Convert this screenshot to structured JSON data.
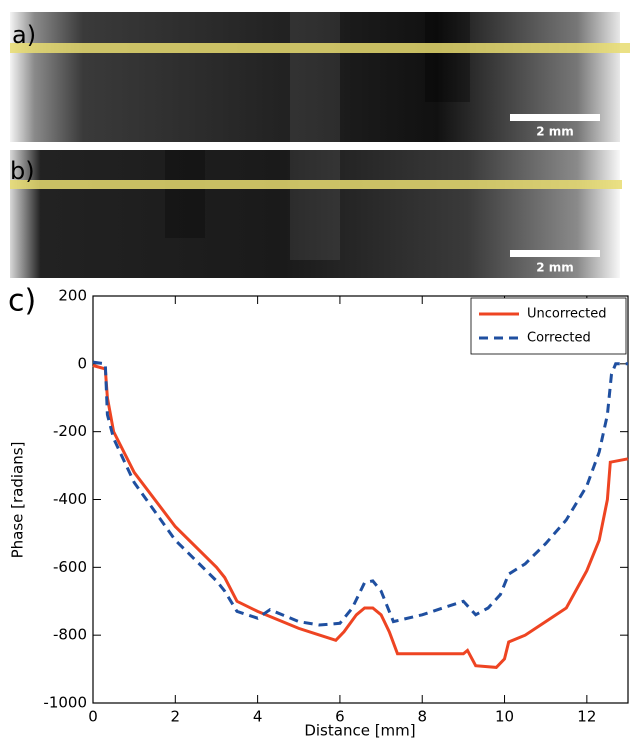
{
  "panels": [
    {
      "label": "a)",
      "scale_bar": "2 mm"
    },
    {
      "label": "b)",
      "scale_bar": "2 mm"
    }
  ],
  "chart_data": {
    "type": "line",
    "panel_label": "c)",
    "x_label": "Distance [mm]",
    "y_label": "Phase [radians]",
    "xlim": [
      0,
      13
    ],
    "ylim": [
      -1000,
      200
    ],
    "xticks": [
      0,
      2,
      4,
      6,
      8,
      10,
      12
    ],
    "yticks": [
      -1000,
      -800,
      -600,
      -400,
      -200,
      0,
      200
    ],
    "legend": "upper right",
    "series": [
      {
        "name": "Uncorrected",
        "color": "#ee4422",
        "style": "solid",
        "x": [
          0,
          0.3,
          0.35,
          0.5,
          1,
          2,
          3,
          3.2,
          3.5,
          4,
          5,
          5.9,
          6.1,
          6.4,
          6.6,
          6.8,
          7.0,
          7.2,
          7.4,
          8,
          9,
          9.1,
          9.3,
          9.8,
          10,
          10.1,
          10.5,
          11,
          11.5,
          12,
          12.3,
          12.5,
          12.57,
          13
        ],
        "values": [
          -5,
          -15,
          -100,
          -200,
          -320,
          -480,
          -600,
          -630,
          -700,
          -730,
          -780,
          -815,
          -790,
          -740,
          -720,
          -720,
          -740,
          -790,
          -855,
          -855,
          -855,
          -845,
          -890,
          -895,
          -870,
          -820,
          -800,
          -760,
          -720,
          -610,
          -520,
          -400,
          -290,
          -280
        ]
      },
      {
        "name": "Corrected",
        "color": "#1f4fa0",
        "style": "dashed",
        "x": [
          0,
          0.3,
          0.35,
          0.5,
          1,
          2,
          3,
          3.2,
          3.5,
          4,
          4.3,
          5,
          5.5,
          6,
          6.3,
          6.6,
          6.8,
          7.0,
          7.3,
          8,
          8.5,
          9,
          9.3,
          9.6,
          9.9,
          10.1,
          10.5,
          11,
          11.5,
          12,
          12.3,
          12.5,
          12.6,
          12.7,
          13
        ],
        "values": [
          5,
          0,
          -150,
          -220,
          -350,
          -520,
          -640,
          -670,
          -730,
          -750,
          -725,
          -760,
          -770,
          -765,
          -720,
          -645,
          -640,
          -670,
          -760,
          -740,
          -720,
          -700,
          -740,
          -720,
          -680,
          -620,
          -590,
          -530,
          -460,
          -360,
          -260,
          -150,
          -30,
          0,
          0
        ]
      }
    ]
  }
}
